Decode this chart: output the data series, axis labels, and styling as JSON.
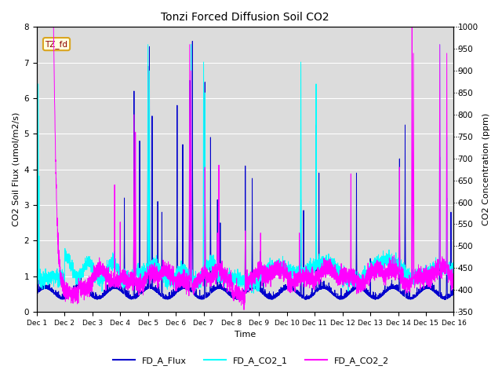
{
  "title": "Tonzi Forced Diffusion Soil CO2",
  "xlabel": "Time",
  "ylabel_left": "CO2 Soil Flux (umol/m2/s)",
  "ylabel_right": "CO2 Concentration (ppm)",
  "ylim_left": [
    0.0,
    8.0
  ],
  "ylim_right": [
    350,
    1000
  ],
  "x_ticks": [
    "Dec 1",
    "Dec 2",
    "Dec 3",
    "Dec 4",
    "Dec 5",
    "Dec 6",
    "Dec 7",
    "Dec 8",
    "Dec 9",
    "Dec 10",
    "Dec 11",
    "Dec 12",
    "Dec 13",
    "Dec 14",
    "Dec 15",
    "Dec 16"
  ],
  "flux_color": "#0000CD",
  "co2_1_color": "#00FFFF",
  "co2_2_color": "#FF00FF",
  "legend_labels": [
    "FD_A_Flux",
    "FD_A_CO2_1",
    "FD_A_CO2_2"
  ],
  "station_label": "TZ_fd",
  "background_color": "#DCDCDC",
  "n_points": 5000,
  "random_seed": 42
}
